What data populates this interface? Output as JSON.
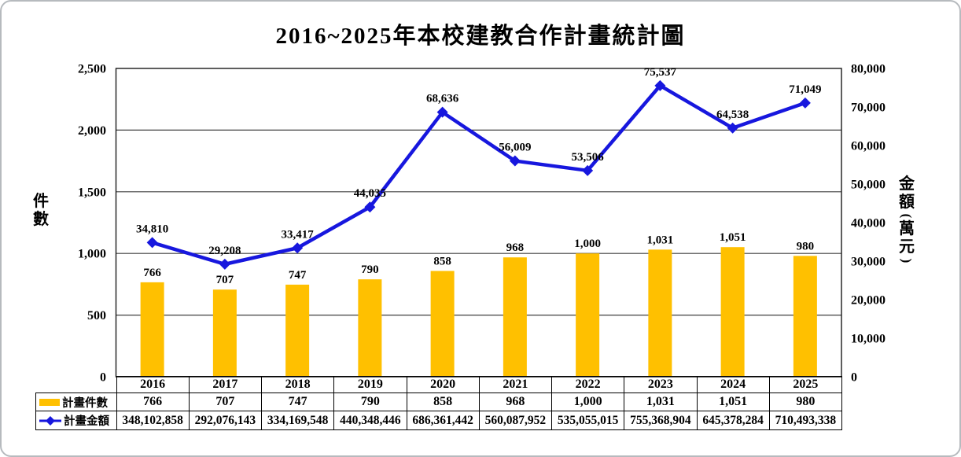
{
  "chart_data": {
    "type": "combo-bar-line",
    "title": "2016~2025年本校建教合作計畫統計圖",
    "categories": [
      "2016",
      "2017",
      "2018",
      "2019",
      "2020",
      "2021",
      "2022",
      "2023",
      "2024",
      "2025"
    ],
    "series": [
      {
        "name": "計畫件數",
        "chart_type": "bar",
        "axis": "left",
        "color": "#FFC000",
        "values": [
          766,
          707,
          747,
          790,
          858,
          968,
          1000,
          1031,
          1051,
          980
        ],
        "labels": [
          "766",
          "707",
          "747",
          "790",
          "858",
          "968",
          "1,000",
          "1,031",
          "1,051",
          "980"
        ]
      },
      {
        "name": "計畫金額",
        "chart_type": "line",
        "axis": "right",
        "color": "#1717DE",
        "marker": "diamond",
        "values": [
          34810,
          29208,
          33417,
          44035,
          68636,
          56009,
          53506,
          75537,
          64538,
          71049
        ],
        "labels": [
          "34,810",
          "29,208",
          "33,417",
          "44,035",
          "68,636",
          "56,009",
          "53,506",
          "75,537",
          "64,538",
          "71,049"
        ],
        "table_values": [
          "348,102,858",
          "292,076,143",
          "334,169,548",
          "440,348,446",
          "686,361,442",
          "560,087,952",
          "535,055,015",
          "755,368,904",
          "645,378,284",
          "710,493,338"
        ]
      }
    ],
    "left_axis": {
      "title": "件數",
      "min": 0,
      "max": 2500,
      "step": 500,
      "tick_labels": [
        "0",
        "500",
        "1,000",
        "1,500",
        "2,000",
        "2,500"
      ]
    },
    "right_axis": {
      "title": "金額(萬元)",
      "min": 0,
      "max": 80000,
      "step": 10000,
      "tick_labels": [
        "0",
        "10,000",
        "20,000",
        "30,000",
        "40,000",
        "50,000",
        "60,000",
        "70,000",
        "80,000"
      ]
    },
    "grid": true,
    "legend_position": "table-left"
  }
}
